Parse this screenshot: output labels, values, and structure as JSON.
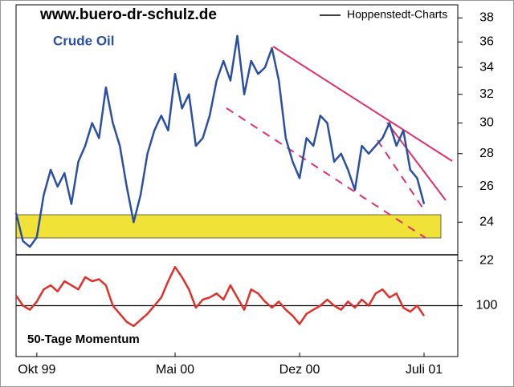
{
  "chart_data": {
    "type": "line",
    "source": "www.buero-dr-schulz.de",
    "credit": "Hoppenstedt-Charts",
    "x": [
      null,
      null,
      null,
      "Okt 99",
      null,
      null,
      null,
      null,
      null,
      null,
      null,
      null,
      null,
      null,
      null,
      null,
      null,
      null,
      null,
      null,
      null,
      null,
      null,
      "Mai 00",
      null,
      null,
      null,
      null,
      null,
      null,
      null,
      null,
      null,
      null,
      null,
      null,
      null,
      null,
      null,
      null,
      null,
      "Dez 00",
      null,
      null,
      null,
      null,
      null,
      null,
      null,
      null,
      null,
      null,
      null,
      null,
      null,
      null,
      null,
      null,
      null,
      "Juli 01"
    ],
    "series": [
      {
        "name": "Crude Oil",
        "color": "#2b4fa3",
        "values": [
          24.5,
          23.0,
          22.7,
          23.2,
          25.5,
          27.0,
          26.0,
          26.8,
          25.0,
          27.5,
          28.5,
          30.0,
          29.0,
          32.5,
          30.0,
          28.5,
          26.0,
          24.0,
          25.5,
          28.0,
          29.5,
          30.5,
          29.5,
          33.5,
          31.0,
          32.0,
          28.5,
          29.0,
          30.5,
          33.0,
          34.5,
          33.0,
          36.5,
          32.0,
          34.5,
          33.5,
          34.0,
          35.5,
          33.0,
          29.0,
          27.5,
          26.5,
          29.0,
          28.5,
          30.5,
          30.0,
          27.5,
          28.0,
          27.0,
          25.8,
          28.5,
          28.0,
          28.5,
          29.0,
          30.0,
          28.5,
          29.5,
          27.0,
          26.5,
          25.0
        ]
      },
      {
        "name": "50-Tage Momentum",
        "color": "#e0302a",
        "axis": "y2",
        "values": [
          105,
          100,
          98,
          102,
          108,
          110,
          107,
          112,
          110,
          108,
          114,
          112,
          113,
          110,
          100,
          96,
          92,
          90,
          93,
          96,
          100,
          104,
          112,
          119,
          114,
          108,
          99,
          103,
          104,
          106,
          103,
          110,
          104,
          98,
          108,
          106,
          102,
          99,
          102,
          98,
          95,
          91,
          96,
          98,
          100,
          103,
          100,
          98,
          102,
          99,
          103,
          100,
          106,
          108,
          104,
          106,
          99,
          97,
          100,
          95
        ]
      }
    ],
    "log_scale": true,
    "ylim": [
      22.3,
      39
    ],
    "yticks": [
      22,
      24,
      26,
      28,
      30,
      32,
      34,
      36,
      38
    ],
    "y2lim": [
      75,
      125
    ],
    "y2ticks": [
      100
    ]
  }
}
